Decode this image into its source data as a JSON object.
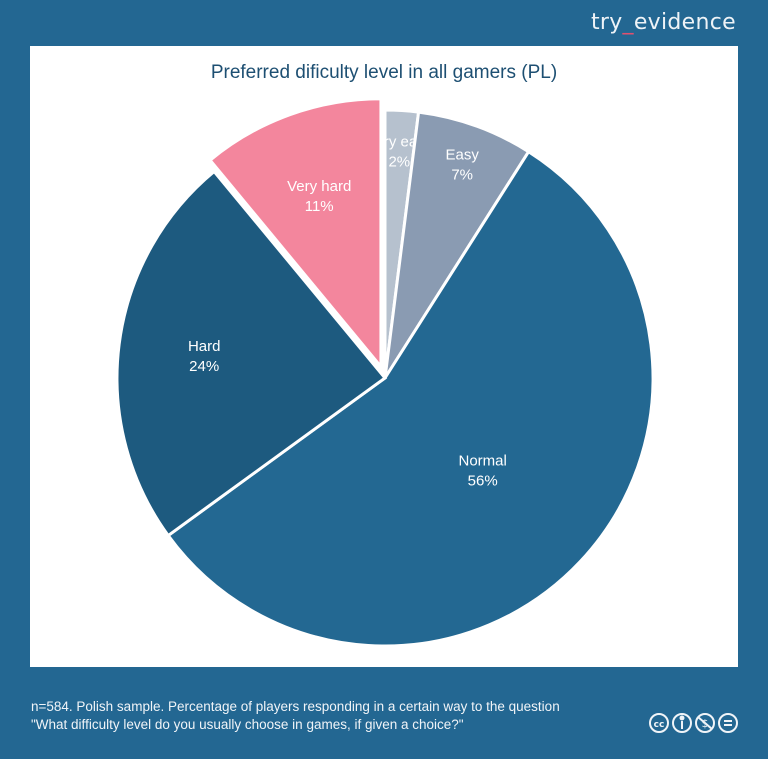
{
  "brand": {
    "prefix": "try",
    "underscore": "_",
    "suffix": "evidence"
  },
  "chart_data": {
    "type": "pie",
    "title": "Preferred dificulty level in all gamers (PL)",
    "start": "top",
    "direction": "clockwise",
    "slices": [
      {
        "label": "Very easy",
        "value": 2,
        "display": "2%",
        "color": "#b6c1ce",
        "exploded": false
      },
      {
        "label": "Easy",
        "value": 7,
        "display": "7%",
        "color": "#8a9bb2",
        "exploded": false
      },
      {
        "label": "Normal",
        "value": 56,
        "display": "56%",
        "color": "#236892",
        "exploded": false
      },
      {
        "label": "Hard",
        "value": 24,
        "display": "24%",
        "color": "#1d5a7f",
        "exploded": false
      },
      {
        "label": "Very hard",
        "value": 11,
        "display": "11%",
        "color": "#f3869d",
        "exploded": true
      }
    ]
  },
  "footer": {
    "line1": "n=584. Polish sample. Percentage of players responding in a certain way to the question",
    "line2": "\"What difficulty level do you usually choose in games, if given a choice?\""
  },
  "license_icons": [
    "cc-icon",
    "attribution-icon",
    "noncommercial-icon",
    "noderivatives-icon"
  ]
}
